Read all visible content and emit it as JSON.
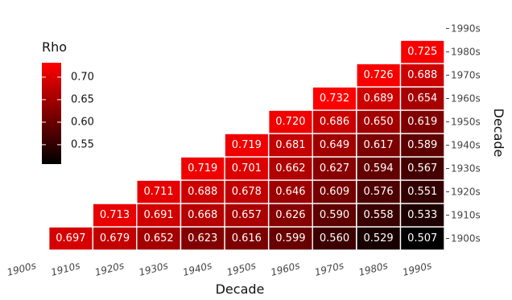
{
  "chart_data": {
    "type": "heatmap",
    "title": "",
    "xlabel": "Decade",
    "ylabel": "Decade",
    "x_categories": [
      "1900s",
      "1910s",
      "1920s",
      "1930s",
      "1940s",
      "1950s",
      "1960s",
      "1970s",
      "1980s",
      "1990s"
    ],
    "y_categories": [
      "1900s",
      "1910s",
      "1920s",
      "1930s",
      "1940s",
      "1950s",
      "1960s",
      "1970s",
      "1980s",
      "1990s"
    ],
    "legend": {
      "title": "Rho",
      "ticks": [
        "0.70",
        "0.65",
        "0.60",
        "0.55"
      ],
      "tick_values": [
        0.7,
        0.65,
        0.6,
        0.55
      ],
      "min": 0.507,
      "max": 0.732,
      "placement": "left"
    },
    "colors": {
      "low": "#000000",
      "high": "#ff0000"
    },
    "cells": [
      {
        "x": "1910s",
        "y": "1900s",
        "value": 0.697,
        "label": "0.697"
      },
      {
        "x": "1920s",
        "y": "1900s",
        "value": 0.679,
        "label": "0.679"
      },
      {
        "x": "1930s",
        "y": "1900s",
        "value": 0.652,
        "label": "0.652"
      },
      {
        "x": "1940s",
        "y": "1900s",
        "value": 0.623,
        "label": "0.623"
      },
      {
        "x": "1950s",
        "y": "1900s",
        "value": 0.616,
        "label": "0.616"
      },
      {
        "x": "1960s",
        "y": "1900s",
        "value": 0.599,
        "label": "0.599"
      },
      {
        "x": "1970s",
        "y": "1900s",
        "value": 0.56,
        "label": "0.560"
      },
      {
        "x": "1980s",
        "y": "1900s",
        "value": 0.529,
        "label": "0.529"
      },
      {
        "x": "1990s",
        "y": "1900s",
        "value": 0.507,
        "label": "0.507"
      },
      {
        "x": "1920s",
        "y": "1910s",
        "value": 0.713,
        "label": "0.713"
      },
      {
        "x": "1930s",
        "y": "1910s",
        "value": 0.691,
        "label": "0.691"
      },
      {
        "x": "1940s",
        "y": "1910s",
        "value": 0.668,
        "label": "0.668"
      },
      {
        "x": "1950s",
        "y": "1910s",
        "value": 0.657,
        "label": "0.657"
      },
      {
        "x": "1960s",
        "y": "1910s",
        "value": 0.626,
        "label": "0.626"
      },
      {
        "x": "1970s",
        "y": "1910s",
        "value": 0.59,
        "label": "0.590"
      },
      {
        "x": "1980s",
        "y": "1910s",
        "value": 0.558,
        "label": "0.558"
      },
      {
        "x": "1990s",
        "y": "1910s",
        "value": 0.533,
        "label": "0.533"
      },
      {
        "x": "1930s",
        "y": "1920s",
        "value": 0.711,
        "label": "0.711"
      },
      {
        "x": "1940s",
        "y": "1920s",
        "value": 0.688,
        "label": "0.688"
      },
      {
        "x": "1950s",
        "y": "1920s",
        "value": 0.678,
        "label": "0.678"
      },
      {
        "x": "1960s",
        "y": "1920s",
        "value": 0.646,
        "label": "0.646"
      },
      {
        "x": "1970s",
        "y": "1920s",
        "value": 0.609,
        "label": "0.609"
      },
      {
        "x": "1980s",
        "y": "1920s",
        "value": 0.576,
        "label": "0.576"
      },
      {
        "x": "1990s",
        "y": "1920s",
        "value": 0.551,
        "label": "0.551"
      },
      {
        "x": "1940s",
        "y": "1930s",
        "value": 0.719,
        "label": "0.719"
      },
      {
        "x": "1950s",
        "y": "1930s",
        "value": 0.701,
        "label": "0.701"
      },
      {
        "x": "1960s",
        "y": "1930s",
        "value": 0.662,
        "label": "0.662"
      },
      {
        "x": "1970s",
        "y": "1930s",
        "value": 0.627,
        "label": "0.627"
      },
      {
        "x": "1980s",
        "y": "1930s",
        "value": 0.594,
        "label": "0.594"
      },
      {
        "x": "1990s",
        "y": "1930s",
        "value": 0.567,
        "label": "0.567"
      },
      {
        "x": "1950s",
        "y": "1940s",
        "value": 0.719,
        "label": "0.719"
      },
      {
        "x": "1960s",
        "y": "1940s",
        "value": 0.681,
        "label": "0.681"
      },
      {
        "x": "1970s",
        "y": "1940s",
        "value": 0.649,
        "label": "0.649"
      },
      {
        "x": "1980s",
        "y": "1940s",
        "value": 0.617,
        "label": "0.617"
      },
      {
        "x": "1990s",
        "y": "1940s",
        "value": 0.589,
        "label": "0.589"
      },
      {
        "x": "1960s",
        "y": "1950s",
        "value": 0.72,
        "label": "0.720"
      },
      {
        "x": "1970s",
        "y": "1950s",
        "value": 0.686,
        "label": "0.686"
      },
      {
        "x": "1980s",
        "y": "1950s",
        "value": 0.65,
        "label": "0.650"
      },
      {
        "x": "1990s",
        "y": "1950s",
        "value": 0.619,
        "label": "0.619"
      },
      {
        "x": "1970s",
        "y": "1960s",
        "value": 0.732,
        "label": "0.732"
      },
      {
        "x": "1980s",
        "y": "1960s",
        "value": 0.689,
        "label": "0.689"
      },
      {
        "x": "1990s",
        "y": "1960s",
        "value": 0.654,
        "label": "0.654"
      },
      {
        "x": "1980s",
        "y": "1970s",
        "value": 0.726,
        "label": "0.726"
      },
      {
        "x": "1990s",
        "y": "1970s",
        "value": 0.688,
        "label": "0.688"
      },
      {
        "x": "1990s",
        "y": "1980s",
        "value": 0.725,
        "label": "0.725"
      }
    ],
    "grid": false,
    "y_axis_position": "right"
  }
}
